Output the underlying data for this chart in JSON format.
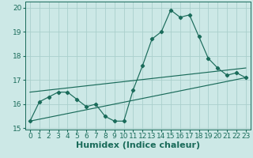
{
  "background_color": "#cce8e6",
  "grid_color": "#aacfcc",
  "line_color": "#1a6b5a",
  "xlim": [
    -0.5,
    23.5
  ],
  "ylim": [
    14.95,
    20.25
  ],
  "yticks": [
    15,
    16,
    17,
    18,
    19,
    20
  ],
  "xticks": [
    0,
    1,
    2,
    3,
    4,
    5,
    6,
    7,
    8,
    9,
    10,
    11,
    12,
    13,
    14,
    15,
    16,
    17,
    18,
    19,
    20,
    21,
    22,
    23
  ],
  "line1_x": [
    0,
    1,
    2,
    3,
    4,
    5,
    6,
    7,
    8,
    9,
    10,
    11,
    12,
    13,
    14,
    15,
    16,
    17,
    18,
    19,
    20,
    21,
    22,
    23
  ],
  "line1_y": [
    15.3,
    16.1,
    16.3,
    16.5,
    16.5,
    16.2,
    15.9,
    16.0,
    15.5,
    15.3,
    15.3,
    16.6,
    17.6,
    18.7,
    19.0,
    19.9,
    19.6,
    19.7,
    18.8,
    17.9,
    17.5,
    17.2,
    17.3,
    17.1
  ],
  "line2_x": [
    0,
    23
  ],
  "line2_y": [
    15.3,
    17.1
  ],
  "line3_x": [
    0,
    23
  ],
  "line3_y": [
    16.5,
    17.5
  ],
  "xlabel": "Humidex (Indice chaleur)",
  "xlabel_fontsize": 8,
  "tick_fontsize": 6.5,
  "marker": "D",
  "markersize": 2.2,
  "linewidth": 0.85
}
